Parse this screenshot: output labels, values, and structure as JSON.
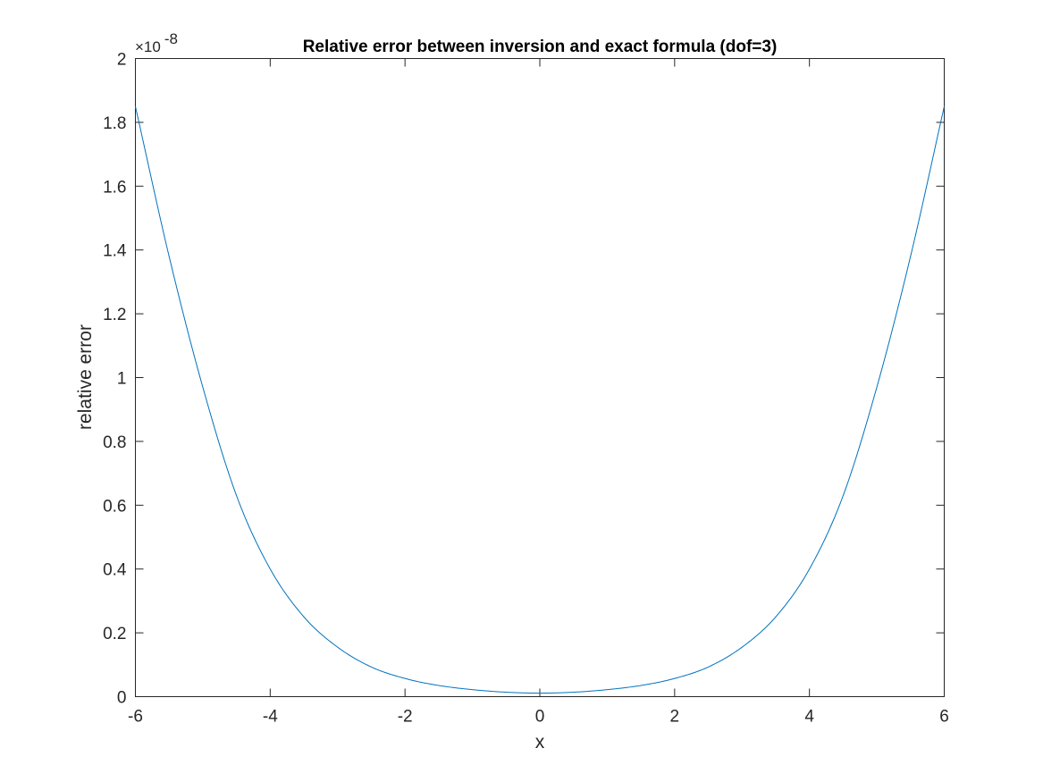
{
  "chart_data": {
    "type": "line",
    "title": "Relative error between inversion and exact formula (dof=3)",
    "xlabel": "x",
    "ylabel": "relative error",
    "xlim": [
      -6,
      6
    ],
    "ylim": [
      0,
      2
    ],
    "y_multiplier": "×10",
    "y_exponent": "-8",
    "xticks": [
      -6,
      -4,
      -2,
      0,
      2,
      4,
      6
    ],
    "xtick_labels": [
      "-6",
      "-4",
      "-2",
      "0",
      "2",
      "4",
      "6"
    ],
    "yticks": [
      0,
      0.2,
      0.4,
      0.6,
      0.8,
      1,
      1.2,
      1.4,
      1.6,
      1.8,
      2
    ],
    "ytick_labels": [
      "0",
      "0.2",
      "0.4",
      "0.6",
      "0.8",
      "1",
      "1.2",
      "1.4",
      "1.6",
      "1.8",
      "2"
    ],
    "grid": false,
    "box": true,
    "series": [
      {
        "color": "#0072BD",
        "x": [
          -6,
          -5.5,
          -5,
          -4.5,
          -4,
          -3.5,
          -3,
          -2.5,
          -2,
          -1.5,
          -1,
          -0.5,
          0,
          0.5,
          1,
          1.5,
          2,
          2.5,
          3,
          3.5,
          4,
          4.5,
          5,
          5.5,
          6
        ],
        "y": [
          1.85,
          1.38,
          0.97,
          0.63,
          0.4,
          0.25,
          0.155,
          0.093,
          0.057,
          0.035,
          0.022,
          0.014,
          0.011,
          0.014,
          0.022,
          0.035,
          0.057,
          0.093,
          0.155,
          0.25,
          0.4,
          0.63,
          0.97,
          1.38,
          1.85
        ]
      }
    ]
  }
}
